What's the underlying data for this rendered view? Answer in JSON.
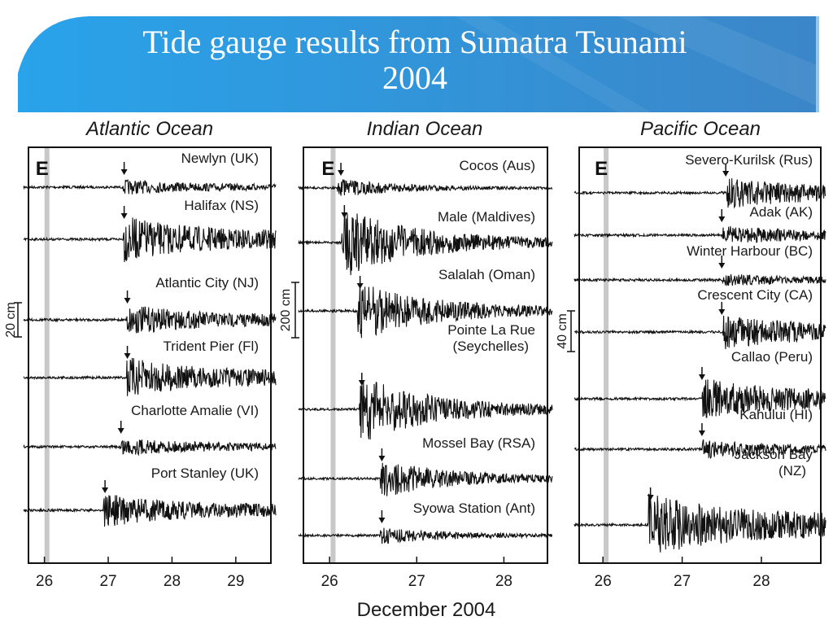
{
  "slide": {
    "title_line1": "Tide gauge results from Sumatra Tsunami",
    "title_line2": "2004",
    "colors": {
      "banner_light": "#2b9fe6",
      "banner_dark": "#3a8ccf",
      "accent": "#5aa9e6"
    }
  },
  "chart_data": [
    {
      "type": "line",
      "title": "Atlantic Ocean",
      "event_label": "E",
      "event_day": 26.04,
      "xlim": [
        25.75,
        29.55
      ],
      "x_ticks": [
        26,
        27,
        28,
        29
      ],
      "scale_bar": "20 cm",
      "series": [
        {
          "name": "Newlyn (UK)",
          "arrival": 27.25,
          "amp": 0.25
        },
        {
          "name": "Halifax (NS)",
          "arrival": 27.25,
          "amp": 0.75
        },
        {
          "name": "Atlantic City (NJ)",
          "arrival": 27.3,
          "amp": 0.5
        },
        {
          "name": "Trident Pier (Fl)",
          "arrival": 27.3,
          "amp": 0.65
        },
        {
          "name": "Charlotte Amalie  (VI)",
          "arrival": 27.2,
          "amp": 0.3
        },
        {
          "name": "Port Stanley  (UK)",
          "arrival": 26.95,
          "amp": 0.55
        }
      ]
    },
    {
      "type": "line",
      "title": "Indian Ocean",
      "event_label": "E",
      "event_day": 26.04,
      "xlim": [
        25.7,
        28.5
      ],
      "x_ticks": [
        26,
        27,
        28
      ],
      "scale_bar": "200 cm",
      "series": [
        {
          "name": "Cocos (Aus)",
          "arrival": 26.13,
          "amp": 0.25
        },
        {
          "name": "Male (Maldives)",
          "arrival": 26.17,
          "amp": 1.0
        },
        {
          "name": "Salalah (Oman)",
          "arrival": 26.35,
          "amp": 0.85
        },
        {
          "name": "Pointe La Rue\n(Seychelles)",
          "arrival": 26.37,
          "amp": 0.95
        },
        {
          "name": "Mossel Bay (RSA)",
          "arrival": 26.6,
          "amp": 0.55
        },
        {
          "name": "Syowa Station (Ant)",
          "arrival": 26.6,
          "amp": 0.25
        }
      ]
    },
    {
      "type": "line",
      "title": "Pacific Ocean",
      "event_label": "E",
      "event_day": 26.04,
      "xlim": [
        25.7,
        28.75
      ],
      "x_ticks": [
        26,
        27,
        28
      ],
      "scale_bar": "40 cm",
      "series": [
        {
          "name": "Severo-Kurilsk  (Rus)",
          "arrival": 27.55,
          "amp": 0.5
        },
        {
          "name": "Adak  (AK)",
          "arrival": 27.5,
          "amp": 0.3
        },
        {
          "name": "Winter Harbour (BC)",
          "arrival": 27.5,
          "amp": 0.2
        },
        {
          "name": "Crescent City (CA)",
          "arrival": 27.5,
          "amp": 0.55
        },
        {
          "name": "Callao (Peru)",
          "arrival": 27.25,
          "amp": 0.65
        },
        {
          "name": "Kahului (HI)",
          "arrival": 27.25,
          "amp": 0.3
        },
        {
          "name": "Jackson Bay\n(NZ)",
          "arrival": 26.6,
          "amp": 1.0
        }
      ]
    }
  ],
  "xlabel": "December  2004"
}
